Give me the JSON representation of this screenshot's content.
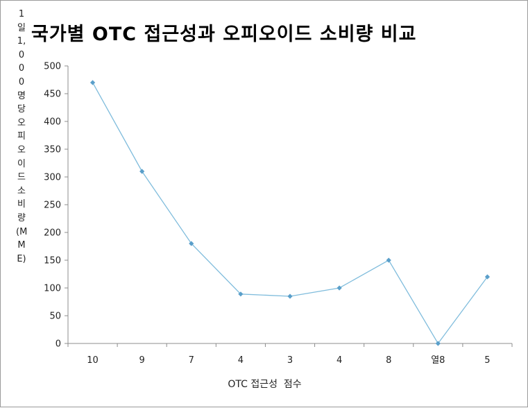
{
  "chart_data": {
    "type": "line",
    "title": "국가별 OTC 접근성과 오피오이드 소비량 비교",
    "xlabel": "OTC 접근성  점수",
    "ylabel": "1일 1,000명당  오피오이드  소비량  (MME)",
    "categories": [
      "10",
      "9",
      "7",
      "4",
      "3",
      "4",
      "8",
      "열8",
      "5"
    ],
    "series": [
      {
        "values": [
          470,
          310,
          180,
          89,
          85,
          100,
          150,
          0,
          120
        ],
        "color": "#7fbcdc",
        "marker_color": "#5a9fca"
      }
    ],
    "ylim": [
      0,
      500
    ],
    "yticks": [
      0,
      50,
      100,
      150,
      200,
      250,
      300,
      350,
      400,
      450,
      500
    ],
    "grid": false
  }
}
